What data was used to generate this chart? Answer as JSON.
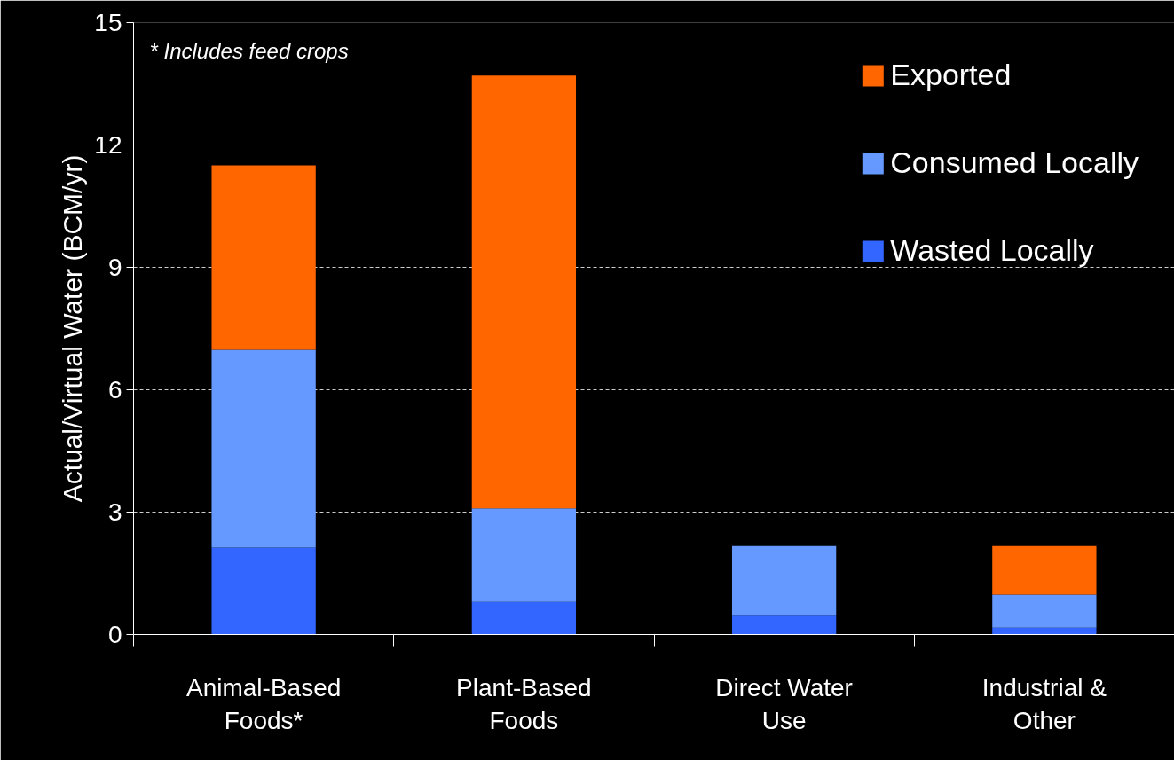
{
  "chart_data": {
    "type": "bar",
    "stacked": true,
    "ylabel": "Actual/Virtual Water (BCM/yr)",
    "categories": [
      "Animal-Based Foods*",
      "Plant-Based Foods",
      "Direct Water Use",
      "Industrial & Other"
    ],
    "series": [
      {
        "name": "Wasted Locally",
        "color": "#3366ff",
        "values": [
          2.13,
          0.8,
          0.46,
          0.17
        ]
      },
      {
        "name": "Consumed Locally",
        "color": "#6699ff",
        "values": [
          4.85,
          2.29,
          1.71,
          0.81
        ]
      },
      {
        "name": "Exported",
        "color": "#ff6600",
        "values": [
          4.52,
          10.61,
          null,
          1.19
        ]
      }
    ],
    "ylim": [
      0,
      15
    ],
    "yticks": [
      0,
      3,
      6,
      9,
      12,
      15
    ],
    "grid": "y",
    "legend": "top right",
    "annotations": [
      "* Includes feed crops"
    ]
  }
}
